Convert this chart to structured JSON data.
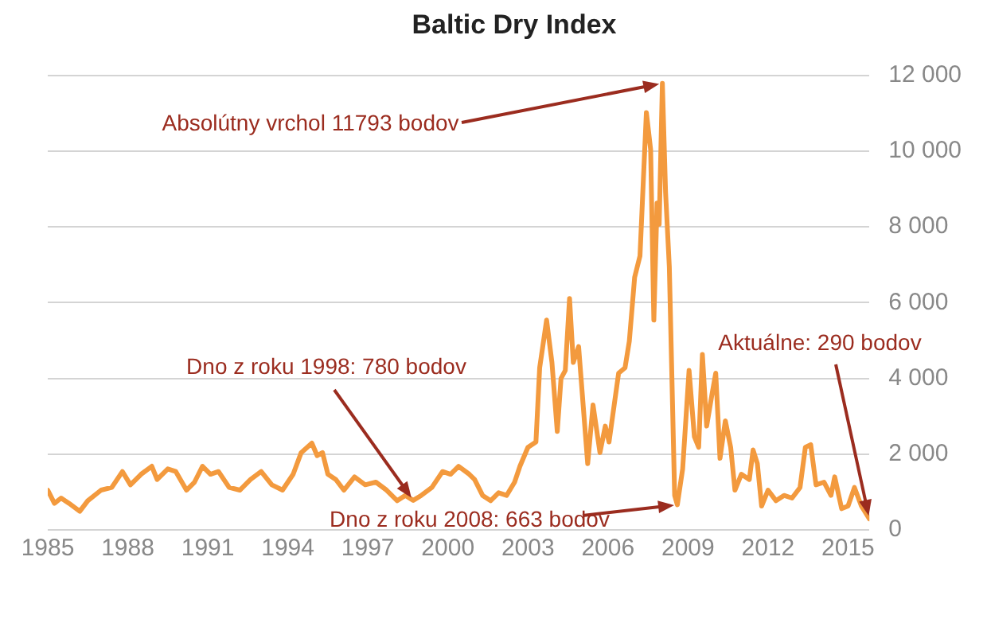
{
  "chart_data": {
    "type": "line",
    "title": "Baltic Dry Index",
    "x": [
      1985.0,
      1985.25,
      1985.5,
      1985.8,
      1986.2,
      1986.5,
      1987.0,
      1987.4,
      1987.8,
      1988.1,
      1988.5,
      1988.9,
      1989.1,
      1989.5,
      1989.8,
      1990.2,
      1990.5,
      1990.8,
      1991.1,
      1991.4,
      1991.8,
      1992.2,
      1992.6,
      1993.0,
      1993.4,
      1993.8,
      1994.2,
      1994.5,
      1994.9,
      1995.1,
      1995.3,
      1995.5,
      1995.8,
      1996.1,
      1996.5,
      1996.9,
      1997.3,
      1997.7,
      1998.1,
      1998.4,
      1998.7,
      1999.0,
      1999.4,
      1999.8,
      2000.1,
      2000.4,
      2000.8,
      2001.0,
      2001.3,
      2001.6,
      2001.9,
      2002.2,
      2002.5,
      2002.7,
      2003.0,
      2003.3,
      2003.44,
      2003.7,
      2003.9,
      2004.1,
      2004.24,
      2004.4,
      2004.56,
      2004.7,
      2004.9,
      2005.24,
      2005.44,
      2005.7,
      2005.9,
      2006.04,
      2006.4,
      2006.64,
      2006.8,
      2007.0,
      2007.2,
      2007.44,
      2007.6,
      2007.72,
      2007.84,
      2007.92,
      2008.04,
      2008.16,
      2008.3,
      2008.5,
      2008.6,
      2008.8,
      2009.04,
      2009.24,
      2009.4,
      2009.54,
      2009.7,
      2009.9,
      2010.04,
      2010.2,
      2010.4,
      2010.6,
      2010.76,
      2011.0,
      2011.3,
      2011.44,
      2011.6,
      2011.76,
      2012.0,
      2012.3,
      2012.6,
      2012.9,
      2013.2,
      2013.4,
      2013.6,
      2013.8,
      2014.1,
      2014.36,
      2014.5,
      2014.76,
      2015.0,
      2015.24,
      2015.5,
      2015.8
    ],
    "series": [
      {
        "color": "#f39a3e",
        "values": [
          1050,
          700,
          840,
          700,
          490,
          770,
          1050,
          1120,
          1540,
          1190,
          1470,
          1680,
          1330,
          1610,
          1540,
          1050,
          1260,
          1680,
          1470,
          1540,
          1120,
          1050,
          1330,
          1540,
          1190,
          1050,
          1470,
          2040,
          2290,
          1960,
          2040,
          1470,
          1330,
          1050,
          1400,
          1190,
          1260,
          1050,
          770,
          910,
          780,
          910,
          1120,
          1540,
          1470,
          1680,
          1470,
          1330,
          910,
          770,
          980,
          910,
          1260,
          1680,
          2180,
          2320,
          4280,
          5540,
          4420,
          2600,
          4000,
          4210,
          6110,
          4420,
          4840,
          1750,
          3300,
          2040,
          2740,
          2320,
          4140,
          4280,
          4980,
          6670,
          7230,
          11020,
          10040,
          5540,
          8630,
          8070,
          11793,
          8910,
          6950,
          910,
          663,
          1610,
          4210,
          2460,
          2180,
          4630,
          2740,
          3580,
          4140,
          1890,
          2880,
          2180,
          1050,
          1470,
          1330,
          2110,
          1750,
          630,
          1050,
          770,
          910,
          840,
          1120,
          2180,
          2250,
          1190,
          1260,
          910,
          1400,
          560,
          630,
          1120,
          630,
          290
        ]
      }
    ],
    "xlim": [
      1985,
      2015.8
    ],
    "xticks": [
      1985,
      1988,
      1991,
      1994,
      1997,
      2000,
      2003,
      2006,
      2009,
      2012,
      2015
    ],
    "ylim": [
      0,
      12000
    ],
    "yticks": [
      {
        "value": 0,
        "label": "0"
      },
      {
        "value": 2000,
        "label": "2 000"
      },
      {
        "value": 4000,
        "label": "4 000"
      },
      {
        "value": 6000,
        "label": "6 000"
      },
      {
        "value": 8000,
        "label": "8 000"
      },
      {
        "value": 10000,
        "label": "10 000"
      },
      {
        "value": 12000,
        "label": "12 000"
      }
    ],
    "grid": "y",
    "legend": false,
    "marker": "none",
    "line_style": "solid",
    "annotations": [
      {
        "text": "Absolútny vrchol 11793 bodov",
        "x": 2008.04,
        "y": 11793
      },
      {
        "text": "Dno z roku 1998: 780 bodov",
        "x": 1998.7,
        "y": 780
      },
      {
        "text": "Dno z roku 2008: 663 bodov",
        "x": 2008.6,
        "y": 663
      },
      {
        "text": "Aktuálne: 290 bodov",
        "x": 2015.8,
        "y": 290
      }
    ]
  }
}
